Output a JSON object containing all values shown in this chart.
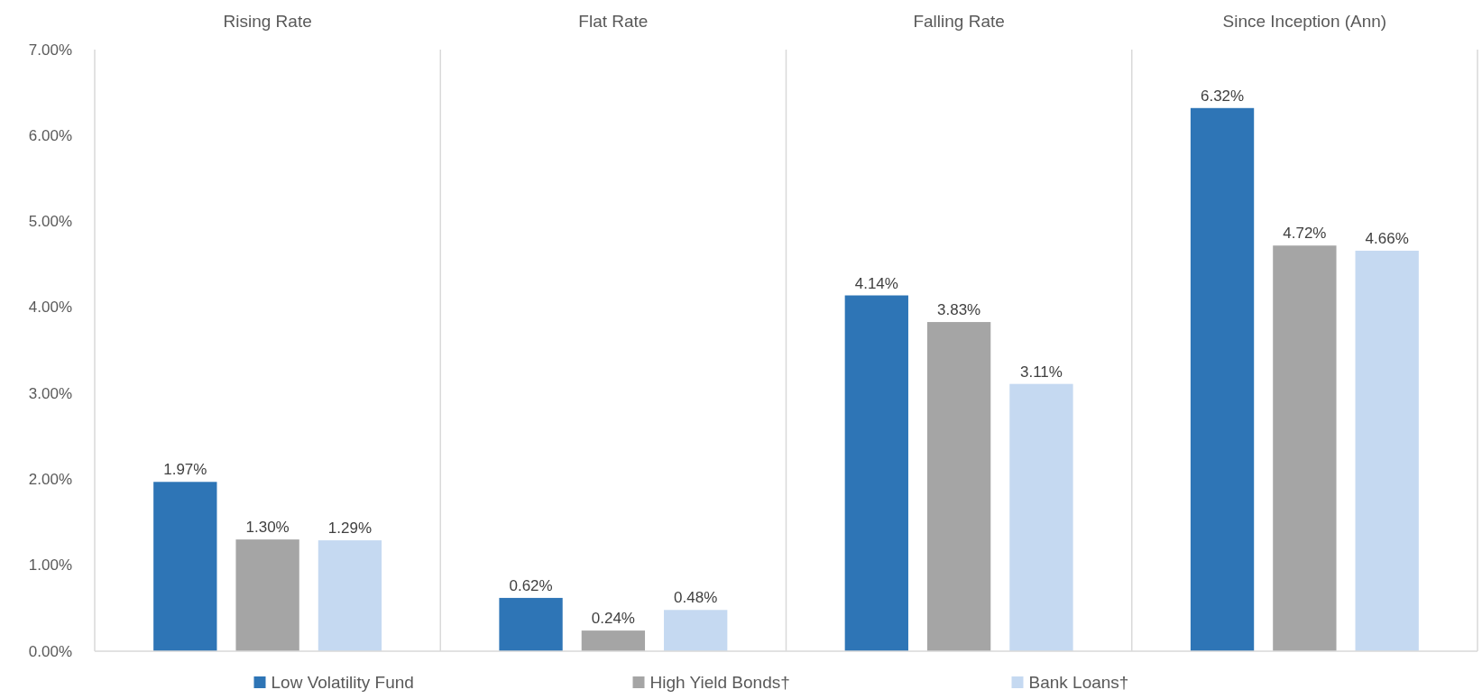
{
  "chart_data": {
    "type": "bar",
    "categories": [
      "Rising Rate",
      "Flat Rate",
      "Falling Rate",
      "Since Inception (Ann)"
    ],
    "series": [
      {
        "name": "Low Volatility Fund",
        "color": "#2e75b6",
        "values": [
          1.97,
          0.62,
          4.14,
          6.32
        ],
        "value_labels": [
          "1.97%",
          "0.62%",
          "4.14%",
          "6.32%"
        ]
      },
      {
        "name": "High Yield Bonds†",
        "color": "#a5a5a5",
        "values": [
          1.3,
          0.24,
          3.83,
          4.72
        ],
        "value_labels": [
          "1.30%",
          "0.24%",
          "3.83%",
          "4.72%"
        ]
      },
      {
        "name": "Bank Loans†",
        "color": "#c5d9f1",
        "values": [
          1.29,
          0.48,
          3.11,
          4.66
        ],
        "value_labels": [
          "1.29%",
          "0.48%",
          "3.11%",
          "4.66%"
        ]
      }
    ],
    "ylim": [
      0,
      7
    ],
    "yticks": [
      {
        "value": 0,
        "label": "0.00%"
      },
      {
        "value": 1,
        "label": "1.00%"
      },
      {
        "value": 2,
        "label": "2.00%"
      },
      {
        "value": 3,
        "label": "3.00%"
      },
      {
        "value": 4,
        "label": "4.00%"
      },
      {
        "value": 5,
        "label": "5.00%"
      },
      {
        "value": 6,
        "label": "6.00%"
      },
      {
        "value": 7,
        "label": "7.00%"
      }
    ],
    "legend": "bottom",
    "grid": false
  }
}
